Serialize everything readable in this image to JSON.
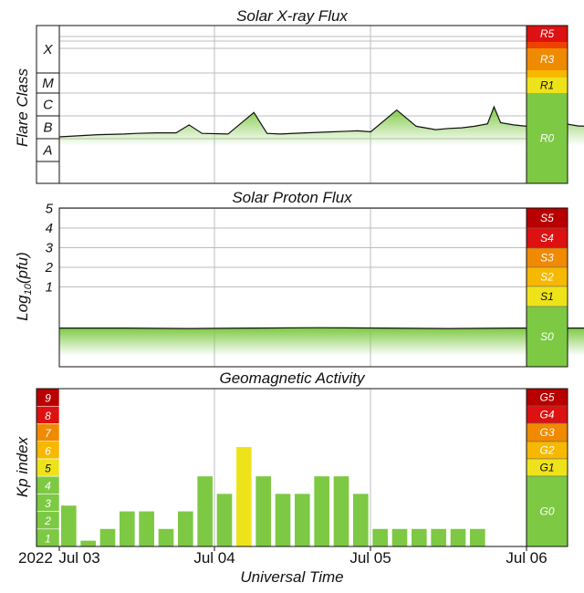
{
  "chart_data": [
    {
      "type": "area",
      "title": "Solar X-ray Flux",
      "ylabel": "Flare Class",
      "y_scale": "log",
      "class_labels": [
        "X",
        "M",
        "C",
        "B",
        "A"
      ],
      "scale_labels": [
        "R5",
        "R3",
        "R1",
        "R0"
      ],
      "x_range": [
        "2022-07-03",
        "2022-07-06"
      ],
      "data_end": "2022-07-05 18:00",
      "series": [
        {
          "x_hours": [
            0,
            6,
            10,
            12,
            15,
            18,
            20,
            22,
            26,
            30,
            32,
            34,
            38,
            42,
            46,
            48,
            52,
            55,
            58,
            60,
            62,
            64,
            66,
            67,
            68,
            70,
            72,
            74,
            76,
            77,
            78,
            80,
            82,
            84,
            86,
            88,
            90
          ],
          "flare_class": [
            "B1.2",
            "B1.5",
            "B1.6",
            "B1.7",
            "B1.8",
            "B1.8",
            "B4",
            "B1.7",
            "B1.6",
            "C1.4",
            "B1.7",
            "B1.6",
            "B1.8",
            "B2",
            "B2.2",
            "B2",
            "C1.8",
            "B3.5",
            "B2.5",
            "B2.8",
            "B3",
            "B3.5",
            "B4.5",
            "C2.5",
            "B5",
            "B4",
            "B3.5",
            "B3.8",
            "B4.2",
            "C1.5",
            "B4.5",
            "B3.6",
            "B3.5",
            "B3.3",
            "B3.1",
            "B3.2",
            "B3.3"
          ]
        }
      ]
    },
    {
      "type": "area",
      "title": "Solar Proton Flux",
      "ylabel": "Log10(pfu)",
      "ylabel_main": "Log",
      "ylabel_sub": "10",
      "ylabel_tail": "(pfu)",
      "yticks": [
        "1",
        "2",
        "3",
        "4",
        "5"
      ],
      "scale_labels": [
        "S5",
        "S4",
        "S3",
        "S2",
        "S1",
        "S0"
      ],
      "series": [
        {
          "x_hours": [
            0,
            10,
            20,
            30,
            40,
            50,
            60,
            70,
            80,
            90
          ],
          "values": [
            -1.1,
            -1.1,
            -1.12,
            -1.1,
            -1.08,
            -1.1,
            -1.12,
            -1.1,
            -1.1,
            -1.1
          ]
        }
      ]
    },
    {
      "type": "bar",
      "title": "Geomagnetic Activity",
      "ylabel": "Kp index",
      "yticks": [
        "1",
        "2",
        "3",
        "4",
        "5",
        "6",
        "7",
        "8",
        "9"
      ],
      "scale_labels": [
        "G5",
        "G4",
        "G3",
        "G2",
        "G1",
        "G0"
      ],
      "x_hours_start": [
        0,
        3,
        6,
        9,
        12,
        15,
        18,
        21,
        24,
        27,
        30,
        33,
        36,
        39,
        42,
        45,
        48,
        51,
        54,
        57,
        60,
        63,
        66,
        69,
        72,
        75,
        78,
        81,
        84,
        87
      ],
      "values": [
        2.33,
        0.33,
        1.0,
        2.0,
        2.0,
        1.0,
        2.0,
        4.0,
        3.0,
        5.67,
        4.0,
        3.0,
        3.0,
        4.0,
        4.0,
        3.0,
        1.0,
        1.0,
        1.0,
        1.0,
        1.0,
        1.0
      ]
    }
  ],
  "xaxis": {
    "label": "Universal Time",
    "year": "2022",
    "ticks": [
      "Jul 03",
      "Jul 04",
      "Jul 05",
      "Jul 06"
    ]
  },
  "colors": {
    "quiet": "#7dc943",
    "minor": "#eee31a",
    "moderate": "#f7b800",
    "strong": "#f08a00",
    "severe": "#ef4200",
    "extreme": "#dd1111",
    "extreme_dark": "#b80000",
    "flux_line": "#111111"
  }
}
